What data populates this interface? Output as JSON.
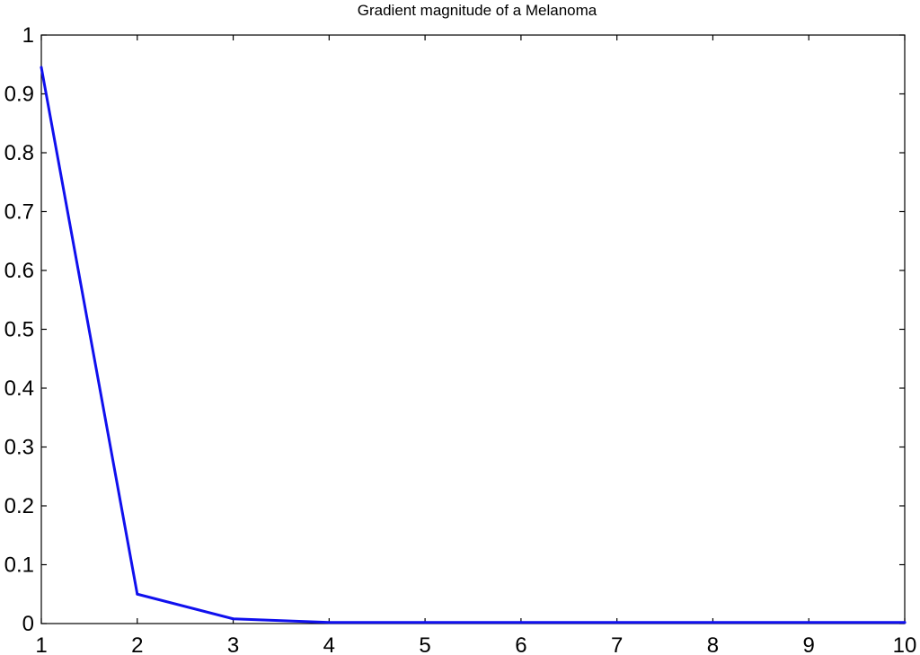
{
  "chart_data": {
    "type": "line",
    "title": "Gradient magnitude of a Melanoma",
    "xlabel": "",
    "ylabel": "",
    "xlim": [
      1,
      10
    ],
    "ylim": [
      0,
      1
    ],
    "grid": false,
    "x_ticks": [
      1,
      2,
      3,
      4,
      5,
      6,
      7,
      8,
      9,
      10
    ],
    "x_tick_labels": [
      "1",
      "2",
      "3",
      "4",
      "5",
      "6",
      "7",
      "8",
      "9",
      "10"
    ],
    "y_ticks": [
      0,
      0.1,
      0.2,
      0.3,
      0.4,
      0.5,
      0.6,
      0.7,
      0.8,
      0.9,
      1
    ],
    "y_tick_labels": [
      "0",
      "0.1",
      "0.2",
      "0.3",
      "0.4",
      "0.5",
      "0.6",
      "0.7",
      "0.8",
      "0.9",
      "1"
    ],
    "series": [
      {
        "color": "#1010ee",
        "x": [
          1,
          2,
          3,
          4,
          5,
          6,
          7,
          8,
          9,
          10
        ],
        "y": [
          0.945,
          0.05,
          0.008,
          0.002,
          0.002,
          0.002,
          0.002,
          0.002,
          0.002,
          0.002
        ]
      }
    ]
  }
}
